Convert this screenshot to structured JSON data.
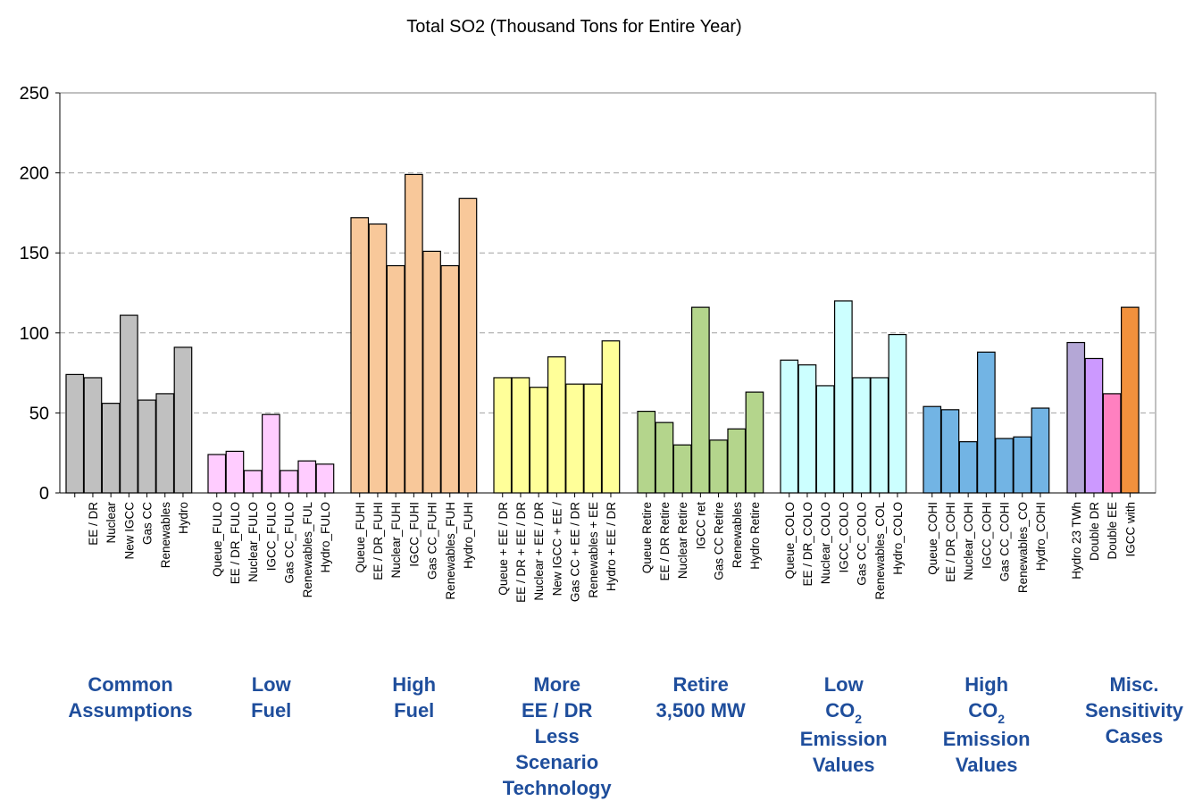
{
  "chart_data": {
    "type": "bar",
    "title": "Total SO2 (Thousand Tons for Entire Year)",
    "xlabel": "",
    "ylabel": "",
    "ylim": [
      0,
      250
    ],
    "yticks": [
      0,
      50,
      100,
      150,
      200,
      250
    ],
    "grid": "horizontal dashed",
    "groups": [
      {
        "name_lines": [
          "Common",
          "Assumptions"
        ],
        "color": "#c0c0c0",
        "categories": [
          "",
          "EE / DR",
          "Nuclear",
          "New IGCC",
          "Gas CC",
          "Renewables",
          "Hydro"
        ],
        "values": [
          74,
          72,
          56,
          111,
          58,
          62,
          91
        ]
      },
      {
        "name_lines": [
          "Low",
          "Fuel"
        ],
        "color": "#ffccff",
        "categories": [
          "Queue_FULO",
          "EE / DR_FULO",
          "Nuclear_FULO",
          "IGCC_FULO",
          "Gas CC_FULO",
          "Renewables_FUL",
          "Hydro_FULO"
        ],
        "values": [
          24,
          26,
          14,
          49,
          14,
          20,
          18
        ]
      },
      {
        "name_lines": [
          "High",
          "Fuel"
        ],
        "color": "#f8c89a",
        "categories": [
          "Queue_FUHI",
          "EE / DR_FUHI",
          "Nuclear_FUHI",
          "IGCC_FUHI",
          "Gas CC_FUHI",
          "Renewables_FUH",
          "Hydro_FUHI"
        ],
        "values": [
          172,
          168,
          142,
          199,
          151,
          142,
          184
        ]
      },
      {
        "name_lines": [
          "More",
          "EE / DR",
          "Less",
          "Scenario",
          "Technology"
        ],
        "color": "#ffff99",
        "categories": [
          "Queue + EE / DR",
          "EE / DR + EE / DR",
          "Nuclear + EE / DR",
          "New IGCC + EE /",
          "Gas CC + EE / DR",
          "Renewables + EE",
          "Hydro + EE / DR"
        ],
        "values": [
          72,
          72,
          66,
          85,
          68,
          68,
          95
        ]
      },
      {
        "name_lines": [
          "Retire",
          "3,500 MW"
        ],
        "color": "#b4d58c",
        "categories": [
          "Queue Retire",
          "EE / DR Retire",
          "Nuclear Retire",
          "IGCC ret",
          "Gas CC Retire",
          "Renewables",
          "Hydro Retire"
        ],
        "values": [
          51,
          44,
          30,
          116,
          33,
          40,
          63
        ]
      },
      {
        "name_lines": [
          "Low",
          "CO|2",
          "Emission",
          "Values"
        ],
        "color": "#ccffff",
        "categories": [
          "Queue_COLO",
          "EE / DR_COLO",
          "Nuclear_COLO",
          "IGCC_COLO",
          "Gas CC_COLO",
          "Renewables_COL",
          "Hydro_COLO"
        ],
        "values": [
          83,
          80,
          67,
          120,
          72,
          72,
          99
        ]
      },
      {
        "name_lines": [
          "High",
          "CO|2",
          "Emission",
          "Values"
        ],
        "color": "#72b4e4",
        "categories": [
          "Queue_COHI",
          "EE / DR_COHI",
          "Nuclear_COHI",
          "IGCC_COHI",
          "Gas CC_COHI",
          "Renewables_CO",
          "Hydro_COHI"
        ],
        "values": [
          54,
          52,
          32,
          88,
          34,
          35,
          53
        ]
      },
      {
        "name_lines": [
          "Misc.",
          "Sensitivity",
          "Cases"
        ],
        "colors": [
          "#b4a7d6",
          "#cc99ff",
          "#ff80c0",
          "#f2913d"
        ],
        "categories": [
          "Hydro 23 TWh",
          "Double DR",
          "Double EE",
          "IGCC with"
        ],
        "values": [
          94,
          84,
          62,
          116
        ]
      }
    ]
  }
}
